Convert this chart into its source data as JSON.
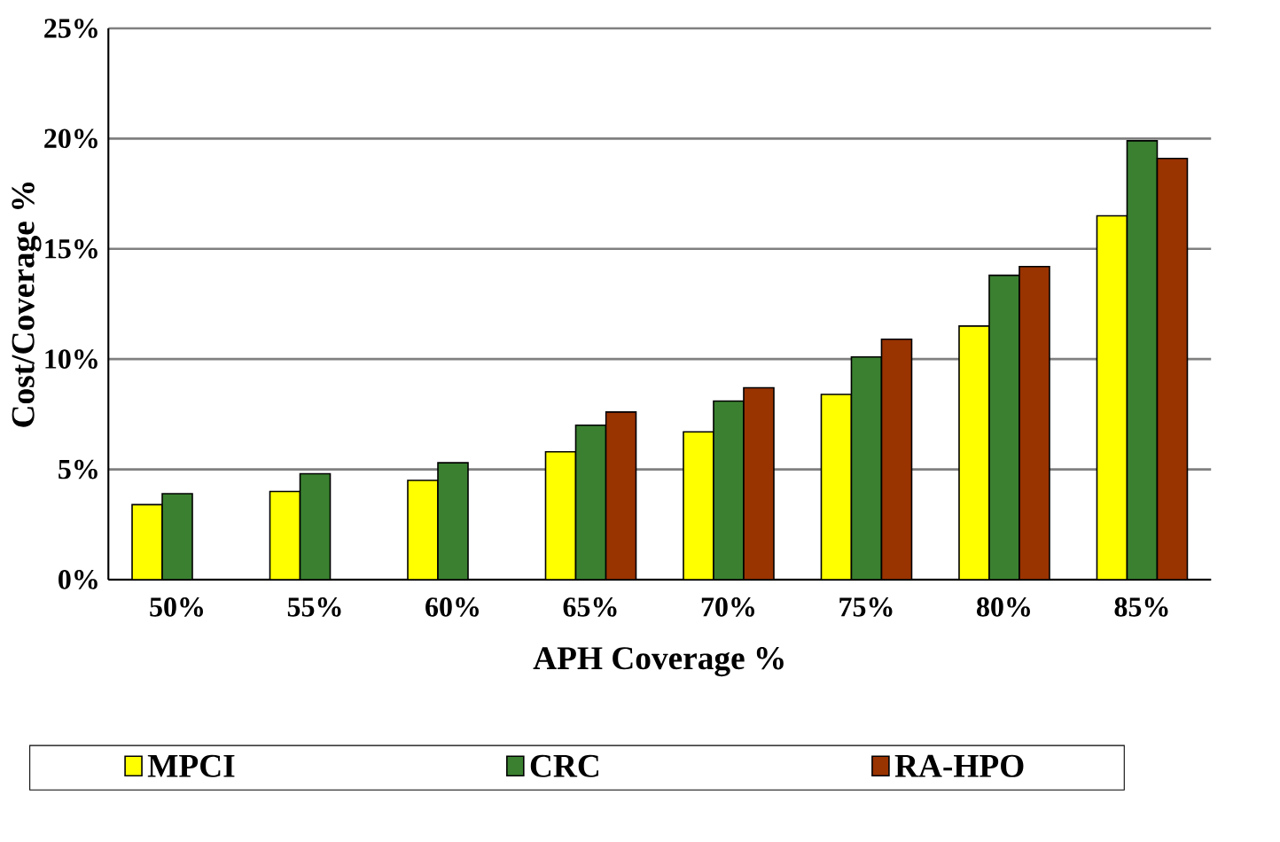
{
  "chart_data": {
    "type": "bar",
    "xlabel": "APH Coverage %",
    "ylabel": "Cost/Coverage %",
    "categories": [
      "50%",
      "55%",
      "60%",
      "65%",
      "70%",
      "75%",
      "80%",
      "85%"
    ],
    "series": [
      {
        "name": "MPCI",
        "color": "#ffff00",
        "values": [
          3.4,
          4.0,
          4.5,
          5.8,
          6.7,
          8.4,
          11.5,
          16.5
        ]
      },
      {
        "name": "CRC",
        "color": "#3a8030",
        "values": [
          3.9,
          4.8,
          5.3,
          7.0,
          8.1,
          10.1,
          13.8,
          19.9
        ]
      },
      {
        "name": "RA-HPO",
        "color": "#993300",
        "values": [
          null,
          null,
          null,
          7.6,
          8.7,
          10.9,
          14.2,
          19.1
        ]
      }
    ],
    "ylim": [
      0,
      25
    ],
    "yticks": [
      {
        "value": 0,
        "label": "0%"
      },
      {
        "value": 5,
        "label": "5%"
      },
      {
        "value": 10,
        "label": "10%"
      },
      {
        "value": 15,
        "label": "15%"
      },
      {
        "value": 20,
        "label": "20%"
      },
      {
        "value": 25,
        "label": "25%"
      }
    ],
    "grid": "y",
    "legend": "bottom"
  }
}
